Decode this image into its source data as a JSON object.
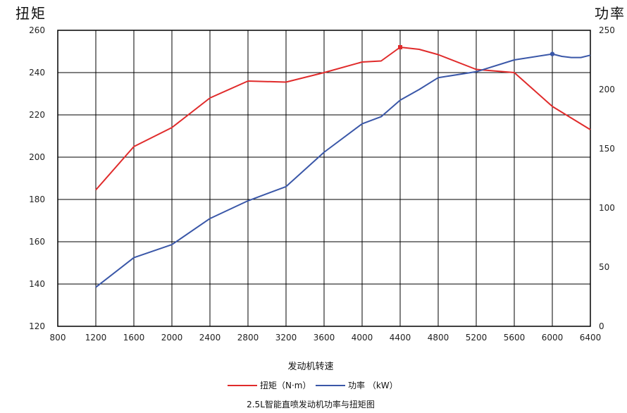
{
  "chart_data": {
    "type": "line",
    "title": "2.5L智能直喷发动机功率与扭矩图",
    "xlabel": "发动机转速",
    "ylabel_left": "扭矩",
    "ylabel_right": "功率",
    "xlim": [
      800,
      6400
    ],
    "x_ticks": [
      "800",
      "1200",
      "1600",
      "2000",
      "2400",
      "2800",
      "3200",
      "3600",
      "4000",
      "4400",
      "4800",
      "5200",
      "5600",
      "6000",
      "6400"
    ],
    "y_left_lim": [
      120,
      260
    ],
    "y_left_ticks": [
      "120",
      "140",
      "160",
      "180",
      "200",
      "220",
      "240",
      "260"
    ],
    "y_right_lim": [
      0,
      250
    ],
    "y_right_ticks": [
      "0",
      "50",
      "100",
      "150",
      "200",
      "250"
    ],
    "grid": true,
    "legend_position": "bottom",
    "colors": {
      "torque": "#e02b2b",
      "power": "#3a57a8"
    },
    "series": [
      {
        "name": "扭矩（N·m）",
        "axis": "left",
        "x": [
          1200,
          1600,
          2000,
          2400,
          2800,
          3200,
          3600,
          4000,
          4200,
          4400,
          4600,
          4800,
          5200,
          5600,
          6000,
          6400
        ],
        "values": [
          184.5,
          205,
          214,
          228,
          236,
          235.5,
          240,
          245,
          245.5,
          252,
          251,
          248.5,
          241.5,
          240,
          224,
          213
        ]
      },
      {
        "name": "功率 （kW）",
        "axis": "right",
        "x": [
          1200,
          1600,
          2000,
          2400,
          2800,
          3200,
          3600,
          4000,
          4200,
          4400,
          4600,
          4800,
          5200,
          5600,
          6000,
          6100,
          6200,
          6300,
          6400
        ],
        "values": [
          33,
          58,
          69,
          91,
          106,
          118,
          147,
          171,
          177,
          191,
          200,
          210,
          215,
          225,
          230,
          228,
          227,
          227,
          229
        ]
      }
    ]
  }
}
